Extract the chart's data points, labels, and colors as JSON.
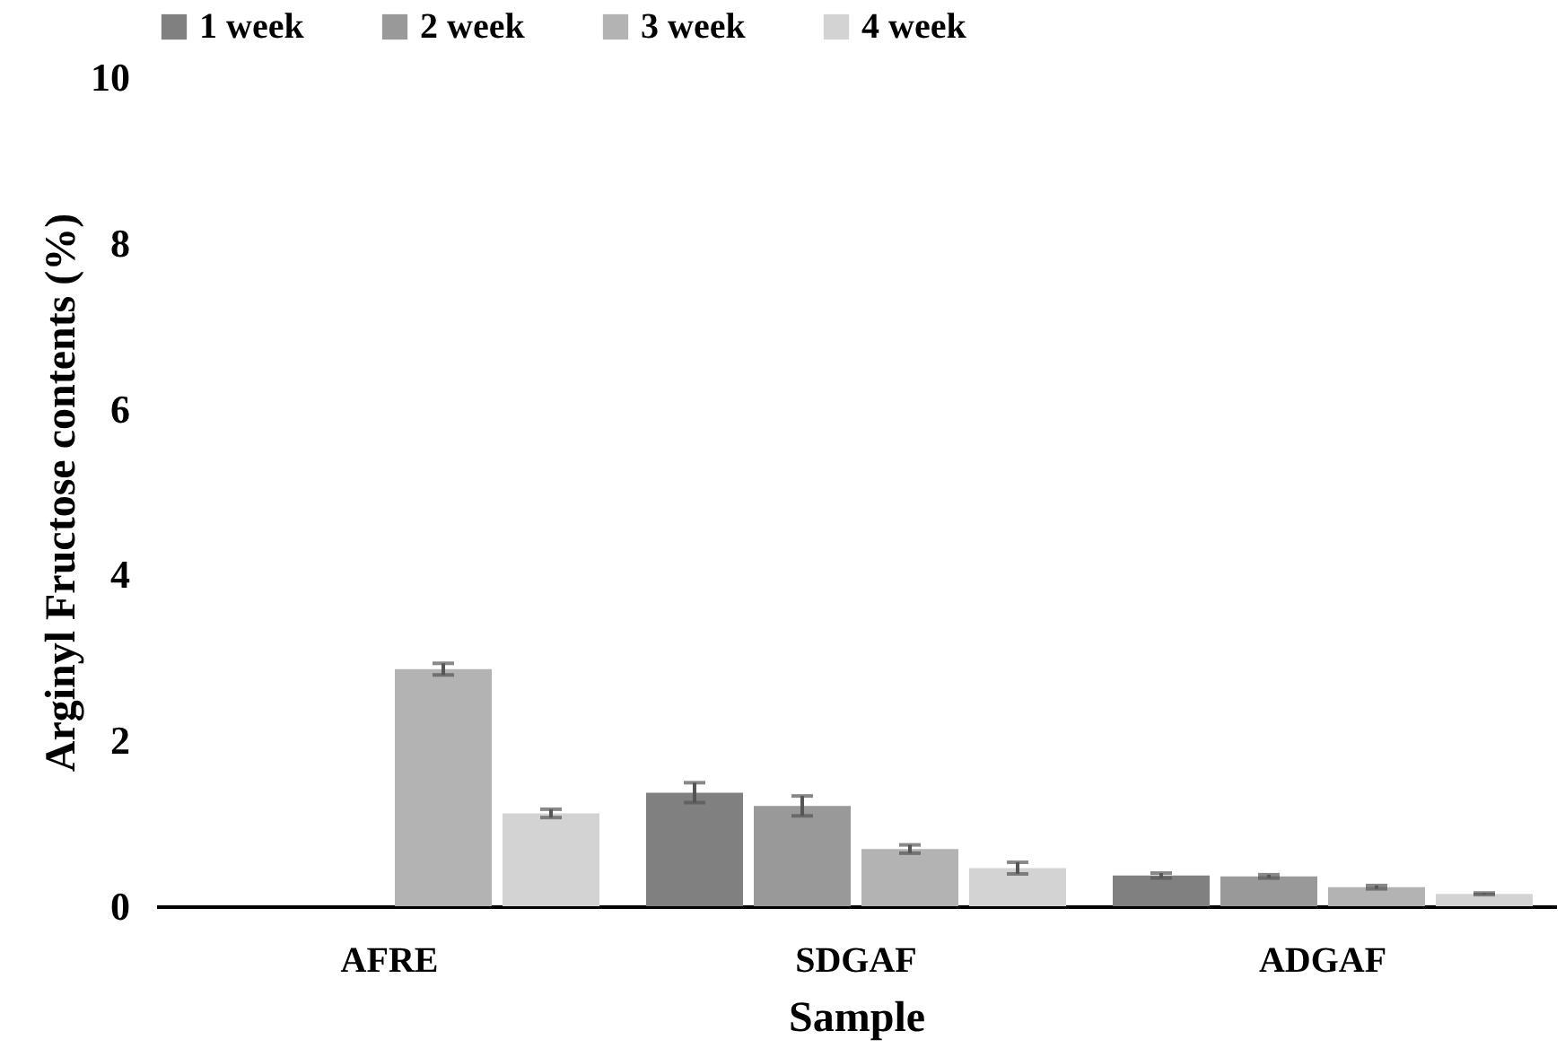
{
  "chart_data": {
    "type": "bar",
    "xlabel": "Sample",
    "ylabel": "Arginyl Fructose contents (%)",
    "categories": [
      "AFRE",
      "SDGAF",
      "ADGAF"
    ],
    "series": [
      {
        "name": "1 week",
        "color": "#808080",
        "values": [
          null,
          1.37,
          0.37
        ],
        "errors": [
          null,
          0.12,
          0.03
        ]
      },
      {
        "name": "2 week",
        "color": "#999999",
        "values": [
          null,
          1.21,
          0.36
        ],
        "errors": [
          null,
          0.12,
          0.02
        ]
      },
      {
        "name": "3 week",
        "color": "#b3b3b3",
        "values": [
          2.86,
          0.69,
          0.23
        ],
        "errors": [
          0.07,
          0.05,
          0.02
        ]
      },
      {
        "name": "4 week",
        "color": "#d3d3d3",
        "values": [
          1.12,
          0.46,
          0.15
        ],
        "errors": [
          0.05,
          0.07,
          0.01
        ]
      }
    ],
    "ylim": [
      0,
      10
    ],
    "yticks": [
      0,
      2,
      4,
      6,
      8,
      10
    ],
    "grid": false,
    "legend": "top"
  }
}
